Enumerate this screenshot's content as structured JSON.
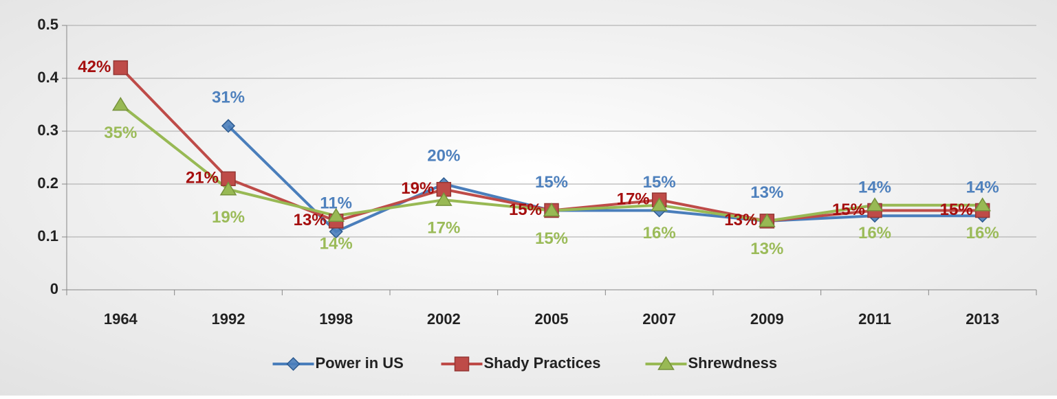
{
  "chart_data": {
    "type": "line",
    "categories": [
      "1964",
      "1992",
      "1998",
      "2002",
      "2005",
      "2007",
      "2009",
      "2011",
      "2013"
    ],
    "series": [
      {
        "name": "Power in US",
        "color": "#4a7ebb",
        "label_color": "#4f81bd",
        "marker": "diamond",
        "values": [
          null,
          0.31,
          0.11,
          0.2,
          0.15,
          0.15,
          0.13,
          0.14,
          0.14
        ],
        "value_labels": [
          null,
          "31%",
          "11%",
          "20%",
          "15%",
          "15%",
          "13%",
          "14%",
          "14%"
        ]
      },
      {
        "name": "Shady Practices",
        "color": "#be4b48",
        "label_color": "#a50e0e",
        "marker": "square",
        "values": [
          0.42,
          0.21,
          0.13,
          0.19,
          0.15,
          0.17,
          0.13,
          0.15,
          0.15
        ],
        "value_labels": [
          "42%",
          "21%",
          "13%",
          "19%",
          "15%",
          "17%",
          "13%",
          "15%",
          "15%"
        ]
      },
      {
        "name": "Shrewdness",
        "color": "#98b954",
        "label_color": "#9bbb59",
        "marker": "triangle",
        "values": [
          0.35,
          0.19,
          0.14,
          0.17,
          0.15,
          0.16,
          0.13,
          0.16,
          0.16
        ],
        "value_labels": [
          "35%",
          "19%",
          "14%",
          "17%",
          "15%",
          "16%",
          "13%",
          "16%",
          "16%"
        ]
      }
    ],
    "ylim": [
      0,
      0.5
    ],
    "yticks": [
      0,
      0.1,
      0.2,
      0.3,
      0.4,
      0.5
    ],
    "grid": true,
    "legend": "bottom"
  }
}
